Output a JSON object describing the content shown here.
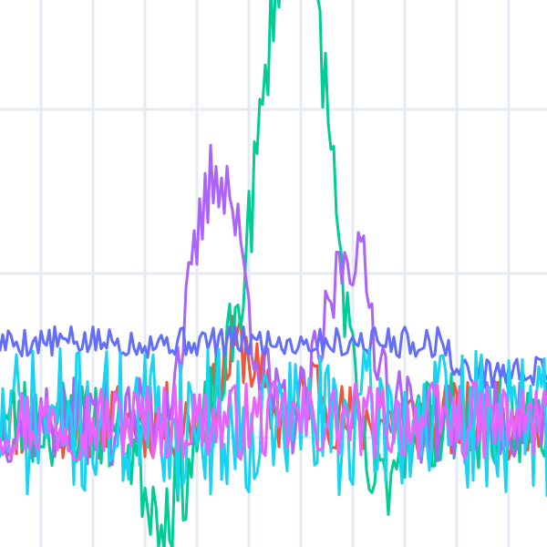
{
  "chart_data": {
    "type": "line",
    "title": "",
    "xlabel": "",
    "ylabel": "",
    "xlim": [
      0,
      200
    ],
    "ylim": [
      -2,
      8
    ],
    "grid": true,
    "grid_x_values": [
      15,
      34,
      53,
      72,
      91,
      110,
      129,
      148,
      167,
      186
    ],
    "grid_y_values": [
      0,
      3,
      6
    ],
    "legend": "none",
    "series": [
      {
        "color": "#EF553B",
        "baseline": 0.3,
        "noise": 0.45,
        "peaks": [
          [
            88,
            1.4,
            6
          ],
          [
            115,
            0.7,
            4
          ]
        ],
        "seed": 11
      },
      {
        "color": "#00CC96",
        "baseline": 0.3,
        "noise": 0.55,
        "peaks": [
          [
            108,
            9.5,
            12
          ],
          [
            60,
            -1.6,
            8
          ],
          [
            135,
            -1.8,
            7
          ]
        ],
        "seed": 23
      },
      {
        "color": "#AB63FA",
        "baseline": 0.3,
        "noise": 0.5,
        "peaks": [
          [
            80,
            4.6,
            9
          ],
          [
            128,
            3.2,
            8
          ]
        ],
        "seed": 37
      },
      {
        "color": "#636EFA",
        "baseline": 1.75,
        "noise": 0.18,
        "peaks": [],
        "tail": [
          [
            165,
            1.2
          ]
        ],
        "seed": 5
      },
      {
        "color": "#19D3F3",
        "baseline": 0.3,
        "noise": 0.85,
        "peaks": [],
        "seed": 71
      },
      {
        "color": "#E763FA",
        "baseline": 0.3,
        "noise": 0.45,
        "peaks": [],
        "seed": 97
      }
    ]
  }
}
